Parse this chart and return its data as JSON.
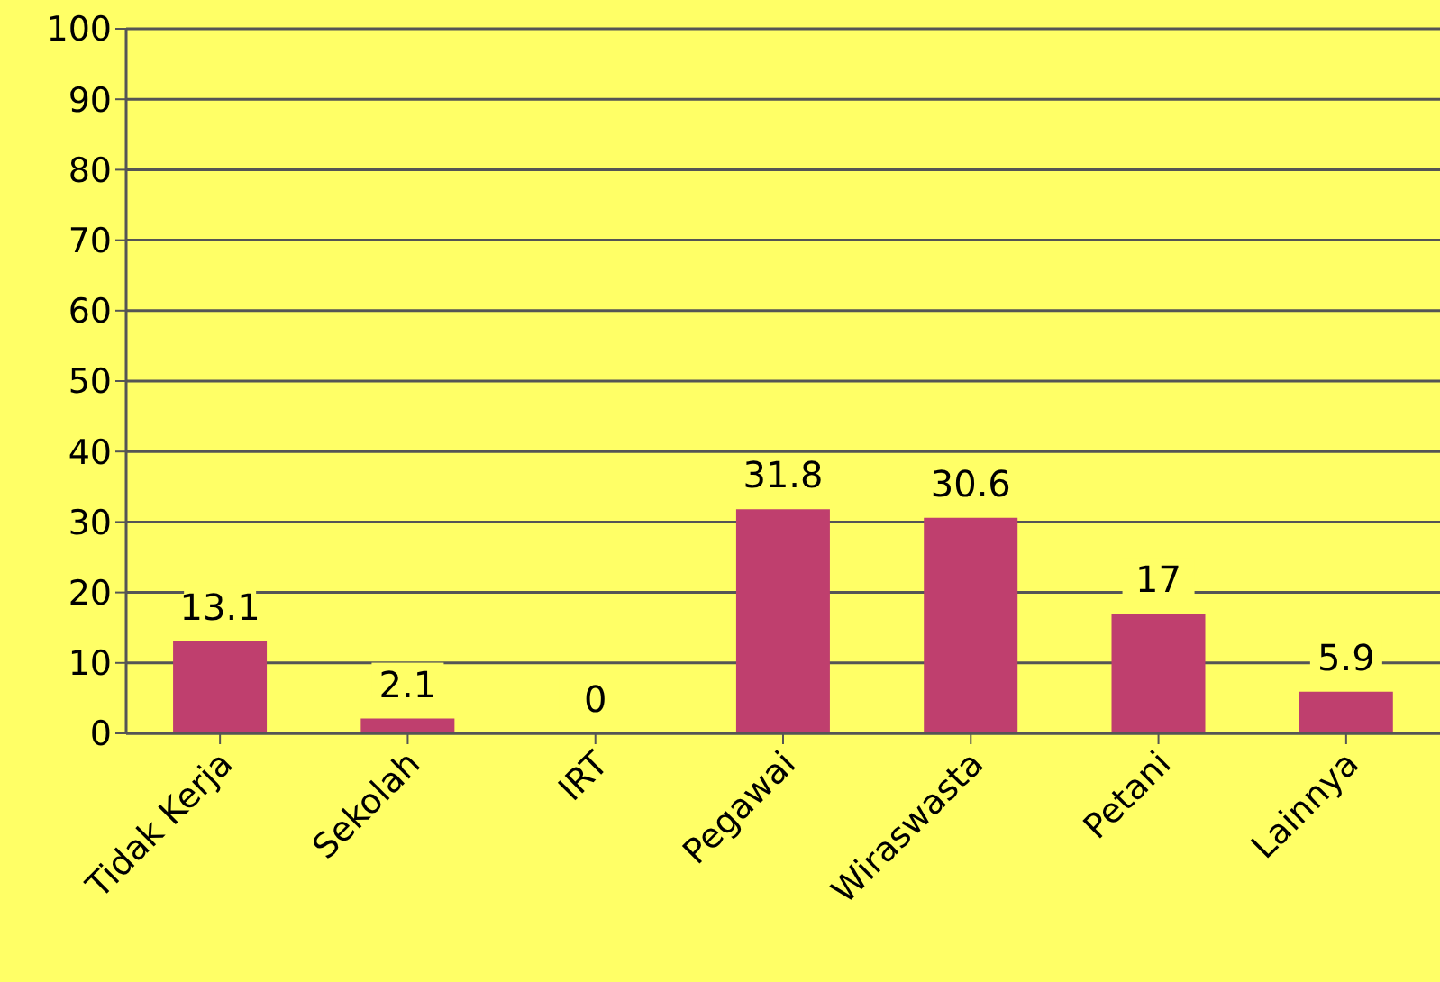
{
  "chart_data": {
    "type": "bar",
    "categories": [
      "Tidak Kerja",
      "Sekolah",
      "IRT",
      "Pegawai",
      "Wiraswasta",
      "Petani",
      "Lainnya"
    ],
    "values": [
      13.1,
      2.1,
      0,
      31.8,
      30.6,
      17,
      5.9
    ],
    "color": "#bf3f6e",
    "ylim": [
      0,
      100
    ],
    "yticks": [
      0,
      10,
      20,
      30,
      40,
      50,
      60,
      70,
      80,
      90,
      100
    ],
    "grid": "y",
    "data_labels": true
  }
}
